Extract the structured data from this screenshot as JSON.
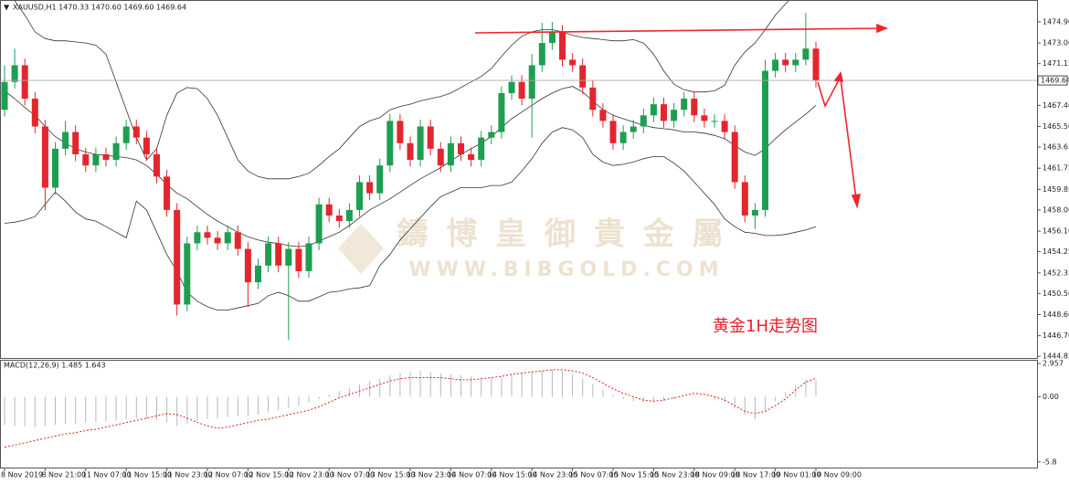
{
  "chart_data": [
    {
      "type": "candlestick",
      "header": "XAUUSD,H1  1470.33 1470.60 1469.60 1469.64",
      "categories": [
        "8 Nov 2019",
        null,
        null,
        null,
        "8 Nov 21:00",
        null,
        null,
        null,
        "11 Nov 07:00",
        null,
        null,
        null,
        "11 Nov 15:00",
        null,
        null,
        null,
        "11 Nov 23:00",
        null,
        null,
        null,
        "12 Nov 07:00",
        null,
        null,
        null,
        "12 Nov 15:00",
        null,
        null,
        null,
        "12 Nov 23:00",
        null,
        null,
        null,
        "13 Nov 07:00",
        null,
        null,
        null,
        "13 Nov 15:00",
        null,
        null,
        null,
        "13 Nov 23:00",
        null,
        null,
        null,
        "14 Nov 07:00",
        null,
        null,
        null,
        "14 Nov 15:00",
        null,
        null,
        null,
        "14 Nov 23:00",
        null,
        null,
        null,
        "15 Nov 07:00",
        null,
        null,
        null,
        "15 Nov 15:00",
        null,
        null,
        null,
        "15 Nov 23:00",
        null,
        null,
        null,
        "18 Nov 09:00",
        null,
        null,
        null,
        "18 Nov 17:00",
        null,
        null,
        null,
        "19 Nov 01:00",
        null,
        null,
        null,
        "19 Nov 09:00"
      ],
      "open": [
        1467.0,
        1469.5,
        1471.0,
        1468.0,
        1465.5,
        1460.0,
        1463.5,
        1465.0,
        1463.0,
        1462.0,
        1463.0,
        1462.5,
        1464.0,
        1465.5,
        1464.5,
        1463.0,
        1461.0,
        1458.0,
        1449.5,
        1455.0,
        1456.0,
        1455.5,
        1455.0,
        1456.0,
        1454.5,
        1451.5,
        1453.0,
        1455.0,
        1453.0,
        1454.5,
        1452.5,
        1455.0,
        1458.5,
        1457.5,
        1457.0,
        1458.0,
        1460.5,
        1459.5,
        1462.0,
        1466.0,
        1464.0,
        1462.5,
        1465.5,
        1463.5,
        1462.0,
        1464.0,
        1463.0,
        1462.5,
        1464.5,
        1465.0,
        1468.5,
        1469.5,
        1468.0,
        1471.0,
        1473.0,
        1474.0,
        1471.5,
        1471.0,
        1469.0,
        1467.0,
        1466.0,
        1464.0,
        1465.0,
        1465.5,
        1466.5,
        1467.5,
        1466.0,
        1467.0,
        1468.0,
        1466.5,
        1466.0,
        1466.0,
        1465.0,
        1460.5,
        1457.5,
        1458.0,
        1470.5,
        1471.5,
        1471.0,
        1471.5,
        1472.5
      ],
      "high": [
        1471.0,
        1472.5,
        1471.6,
        1468.6,
        1466.1,
        1464.1,
        1466.0,
        1465.6,
        1463.6,
        1463.6,
        1463.6,
        1464.6,
        1466.1,
        1466.1,
        1465.1,
        1463.6,
        1461.6,
        1458.6,
        1455.6,
        1456.6,
        1456.6,
        1456.1,
        1456.6,
        1456.6,
        1455.1,
        1453.6,
        1455.6,
        1455.6,
        1455.1,
        1455.1,
        1455.6,
        1459.1,
        1459.1,
        1458.1,
        1458.6,
        1461.1,
        1461.1,
        1462.6,
        1466.6,
        1466.6,
        1464.6,
        1466.1,
        1466.1,
        1464.1,
        1464.6,
        1464.6,
        1463.6,
        1465.1,
        1465.6,
        1469.1,
        1470.1,
        1470.1,
        1472.0,
        1474.8,
        1474.9,
        1474.6,
        1472.1,
        1471.6,
        1469.6,
        1467.6,
        1466.6,
        1465.6,
        1466.1,
        1467.1,
        1468.1,
        1468.1,
        1467.6,
        1468.6,
        1468.6,
        1467.1,
        1466.6,
        1466.6,
        1465.6,
        1461.1,
        1458.6,
        1471.5,
        1472.1,
        1472.1,
        1472.1,
        1475.7,
        1473.1
      ],
      "low": [
        1466.4,
        1468.9,
        1467.4,
        1464.9,
        1458.0,
        1459.4,
        1462.9,
        1462.4,
        1461.4,
        1461.4,
        1461.9,
        1461.9,
        1463.4,
        1463.9,
        1462.4,
        1460.4,
        1457.4,
        1448.5,
        1448.9,
        1454.4,
        1454.9,
        1454.4,
        1454.4,
        1453.9,
        1449.3,
        1450.9,
        1452.4,
        1452.4,
        1446.3,
        1451.9,
        1451.9,
        1454.4,
        1456.9,
        1456.4,
        1456.4,
        1457.4,
        1458.9,
        1458.9,
        1461.4,
        1463.4,
        1461.9,
        1461.9,
        1462.9,
        1461.4,
        1461.4,
        1462.4,
        1461.9,
        1461.9,
        1463.9,
        1464.4,
        1467.9,
        1467.4,
        1464.5,
        1470.4,
        1472.4,
        1470.9,
        1470.4,
        1468.4,
        1466.4,
        1465.4,
        1463.4,
        1463.4,
        1464.4,
        1464.9,
        1465.9,
        1465.4,
        1465.4,
        1466.4,
        1465.9,
        1465.4,
        1465.4,
        1464.4,
        1459.9,
        1456.9,
        1456.3,
        1457.4,
        1469.9,
        1470.4,
        1470.4,
        1471.0,
        1469.0
      ],
      "close": [
        1469.5,
        1471.0,
        1468.0,
        1465.5,
        1460.0,
        1463.5,
        1465.0,
        1463.0,
        1462.0,
        1463.0,
        1462.5,
        1464.0,
        1465.5,
        1464.5,
        1463.0,
        1461.0,
        1458.0,
        1449.5,
        1455.0,
        1456.0,
        1455.5,
        1455.0,
        1456.0,
        1454.5,
        1451.5,
        1453.0,
        1455.0,
        1453.0,
        1454.5,
        1452.5,
        1455.0,
        1458.5,
        1457.5,
        1457.0,
        1458.0,
        1460.5,
        1459.5,
        1462.0,
        1466.0,
        1464.0,
        1462.5,
        1465.5,
        1463.5,
        1462.0,
        1464.0,
        1463.0,
        1462.5,
        1464.5,
        1465.0,
        1468.5,
        1469.5,
        1468.0,
        1471.0,
        1473.0,
        1474.0,
        1471.5,
        1471.0,
        1469.0,
        1467.0,
        1466.0,
        1464.0,
        1465.0,
        1465.5,
        1466.5,
        1467.5,
        1466.0,
        1467.0,
        1468.0,
        1466.5,
        1466.0,
        1466.0,
        1465.0,
        1460.5,
        1457.5,
        1458.0,
        1470.5,
        1471.5,
        1471.0,
        1471.5,
        1472.5,
        1469.64
      ],
      "up_color": "#1e9e50",
      "down_color": "#e3262e",
      "bands": {
        "color": "#333333",
        "upper": [
          1477.5,
          1476.8,
          1475.5,
          1474.0,
          1473.4,
          1473.2,
          1473.2,
          1473.1,
          1473.0,
          1472.8,
          1472.0,
          1469.5,
          1467.0,
          1464.5,
          1462.5,
          1463.5,
          1466.5,
          1468.5,
          1469.0,
          1468.9,
          1468.0,
          1466.5,
          1464.5,
          1462.5,
          1461.5,
          1461.0,
          1460.8,
          1460.8,
          1460.8,
          1461.0,
          1461.3,
          1462.0,
          1462.8,
          1463.5,
          1464.5,
          1465.5,
          1466.0,
          1466.3,
          1467.0,
          1467.3,
          1467.5,
          1467.8,
          1468.0,
          1468.2,
          1468.5,
          1469.0,
          1469.5,
          1470.0,
          1470.7,
          1471.8,
          1472.8,
          1473.6,
          1474.0,
          1474.2,
          1474.2,
          1474.0,
          1473.7,
          1473.5,
          1473.4,
          1473.3,
          1473.2,
          1473.2,
          1473.3,
          1473.0,
          1472.0,
          1470.5,
          1469.3,
          1468.8,
          1468.6,
          1468.6,
          1468.7,
          1469.2,
          1471.0,
          1472.2,
          1473.0,
          1474.2,
          1475.5,
          1476.5,
          1477.5,
          1478.5,
          1479.0
        ],
        "middle": [
          1468.7,
          1468.0,
          1467.2,
          1466.5,
          1465.5,
          1464.6,
          1464.0,
          1463.5,
          1463.2,
          1463.0,
          1462.9,
          1462.8,
          1462.7,
          1462.5,
          1462.0,
          1461.2,
          1460.3,
          1459.5,
          1459.0,
          1458.3,
          1457.6,
          1457.0,
          1456.5,
          1456.0,
          1455.6,
          1455.3,
          1455.1,
          1455.0,
          1454.8,
          1454.7,
          1454.8,
          1455.2,
          1455.6,
          1456.0,
          1456.6,
          1457.3,
          1458.0,
          1458.5,
          1459.0,
          1459.6,
          1460.2,
          1460.8,
          1461.3,
          1461.8,
          1462.4,
          1463.0,
          1463.5,
          1464.0,
          1464.6,
          1465.4,
          1466.2,
          1466.8,
          1467.4,
          1468.0,
          1468.5,
          1468.9,
          1469.1,
          1468.6,
          1467.8,
          1467.0,
          1466.5,
          1466.2,
          1465.9,
          1465.6,
          1465.4,
          1465.3,
          1465.2,
          1465.0,
          1465.0,
          1464.9,
          1464.7,
          1464.4,
          1463.8,
          1463.2,
          1462.9,
          1463.5,
          1464.4,
          1465.2,
          1465.9,
          1466.6,
          1467.4
        ],
        "lower": [
          1456.8,
          1456.9,
          1457.1,
          1457.4,
          1458.5,
          1459.6,
          1458.8,
          1457.8,
          1457.2,
          1457.0,
          1456.5,
          1456.0,
          1455.5,
          1458.8,
          1458.0,
          1456.0,
          1454.0,
          1452.5,
          1450.6,
          1449.8,
          1449.3,
          1449.0,
          1449.0,
          1449.2,
          1449.4,
          1449.6,
          1450.3,
          1450.6,
          1450.3,
          1449.8,
          1449.8,
          1450.2,
          1450.6,
          1450.7,
          1450.9,
          1451.0,
          1451.2,
          1453.0,
          1454.0,
          1455.3,
          1456.3,
          1457.3,
          1458.3,
          1459.2,
          1459.6,
          1460.0,
          1460.0,
          1460.0,
          1460.2,
          1460.2,
          1460.5,
          1461.5,
          1462.6,
          1464.0,
          1465.0,
          1465.4,
          1465.2,
          1464.5,
          1463.0,
          1462.3,
          1462.0,
          1462.1,
          1462.3,
          1462.6,
          1462.8,
          1462.8,
          1462.2,
          1461.5,
          1460.5,
          1459.5,
          1458.5,
          1457.2,
          1456.5,
          1456.0,
          1455.9,
          1455.7,
          1455.7,
          1455.8,
          1456.0,
          1456.2,
          1456.5
        ]
      },
      "ylim": [
        1444.7,
        1476.7
      ],
      "yticks": [
        {
          "value": 1474.9,
          "label": "1474.90"
        },
        {
          "value": 1473,
          "label": "1473.00"
        },
        1471.15,
        {
          "value": 1467.4,
          "label": "1467.40"
        },
        {
          "value": 1465.5,
          "label": "1465.50"
        },
        1463.65,
        1461.75,
        1459.85,
        {
          "value": 1458,
          "label": "1458.00"
        },
        {
          "value": 1456.1,
          "label": "1456.10"
        },
        1454.25,
        1452.35,
        {
          "value": 1450.5,
          "label": "1450.50"
        },
        {
          "value": 1448.6,
          "label": "1448.60"
        },
        {
          "value": 1446.7,
          "label": "1446.70"
        },
        1444.85
      ],
      "last_price": 1469.64,
      "annotation": "黄金1H走势图",
      "watermark": {
        "name": "鑄 博 皇 御 貴 金 屬",
        "url": "WWW.BIBGOLD.COM"
      }
    },
    {
      "type": "macd",
      "label": "MACD(12,26,9) 1.485 1.643",
      "histogram": [
        -2.5,
        -2.6,
        -2.6,
        -2.7,
        -2.6,
        -2.5,
        -2.4,
        -2.4,
        -2.3,
        -2.3,
        -2.2,
        -2.1,
        -2.0,
        -1.9,
        -2.0,
        -2.1,
        -2.3,
        -2.6,
        -2.4,
        -2.2,
        -2.0,
        -1.9,
        -1.8,
        -1.7,
        -1.7,
        -1.6,
        -1.4,
        -1.2,
        -1.0,
        -0.8,
        -0.5,
        -0.2,
        0.2,
        0.5,
        0.8,
        1.1,
        1.4,
        1.6,
        1.9,
        2.1,
        2.2,
        2.3,
        2.2,
        2.1,
        2.0,
        1.9,
        1.8,
        1.7,
        1.7,
        1.8,
        2.0,
        2.1,
        2.2,
        2.3,
        2.4,
        2.3,
        2.0,
        1.6,
        1.1,
        0.6,
        0.2,
        -0.2,
        -0.4,
        -0.5,
        -0.5,
        -0.4,
        -0.2,
        0.0,
        0.1,
        0.0,
        -0.3,
        -0.5,
        -1.0,
        -1.6,
        -2.0,
        -1.2,
        -0.4,
        0.4,
        1.0,
        1.5,
        1.485
      ],
      "signal": [
        -4.5,
        -4.3,
        -4.1,
        -3.9,
        -3.7,
        -3.5,
        -3.3,
        -3.2,
        -3.0,
        -2.9,
        -2.7,
        -2.5,
        -2.3,
        -2.1,
        -1.9,
        -1.7,
        -1.5,
        -1.6,
        -1.9,
        -2.3,
        -2.6,
        -2.8,
        -2.7,
        -2.5,
        -2.3,
        -2.1,
        -2.0,
        -1.8,
        -1.6,
        -1.4,
        -1.2,
        -0.9,
        -0.5,
        -0.1,
        0.2,
        0.5,
        0.8,
        1.1,
        1.4,
        1.6,
        1.7,
        1.7,
        1.7,
        1.7,
        1.6,
        1.5,
        1.5,
        1.6,
        1.7,
        1.8,
        2.0,
        2.1,
        2.2,
        2.3,
        2.4,
        2.4,
        2.3,
        2.1,
        1.7,
        1.2,
        0.7,
        0.3,
        0.0,
        -0.3,
        -0.4,
        -0.3,
        -0.1,
        0.1,
        0.3,
        0.2,
        0.0,
        -0.3,
        -0.8,
        -1.3,
        -1.5,
        -1.3,
        -0.8,
        -0.2,
        0.6,
        1.3,
        1.643
      ],
      "histogram_color": "#b8b8b8",
      "signal_color": "#e0201c",
      "ylim": [
        -6.3,
        3.2
      ],
      "yticks": [
        2.957,
        {
          "value": 0,
          "label": "0.00"
        },
        -5.8
      ]
    }
  ]
}
